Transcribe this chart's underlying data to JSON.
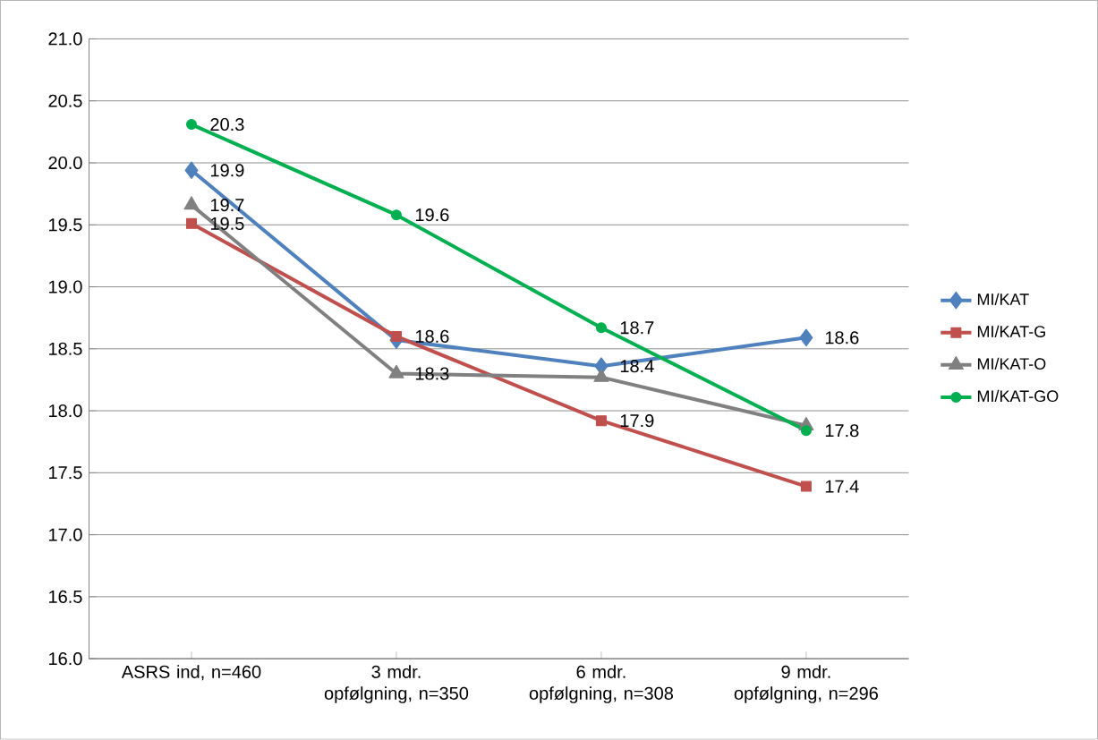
{
  "chart_data": {
    "type": "line",
    "categories": [
      "ASRS ind, n=460",
      "3 mdr. opfølgning, n=350",
      "6 mdr. opfølgning, n=308",
      "9 mdr. opfølgning, n=296"
    ],
    "series": [
      {
        "name": "MI/KAT",
        "color": "#4f81bd",
        "marker": "diamond",
        "values": [
          19.94,
          18.57,
          18.36,
          18.59
        ],
        "value_labels": [
          "19.9",
          null,
          "18.4",
          "18.6"
        ]
      },
      {
        "name": "MI/KAT-G",
        "color": "#c0504d",
        "marker": "square",
        "values": [
          19.51,
          18.6,
          17.92,
          17.39
        ],
        "value_labels": [
          "19.5",
          "18.6",
          "17.9",
          "17.4"
        ]
      },
      {
        "name": "MI/KAT-O",
        "color": "#808080",
        "marker": "triangle",
        "values": [
          19.66,
          18.3,
          18.27,
          17.88
        ],
        "value_labels": [
          "19.7",
          "18.3",
          null,
          null
        ]
      },
      {
        "name": "MI/KAT-GO",
        "color": "#00b050",
        "marker": "circle",
        "values": [
          20.31,
          19.58,
          18.67,
          17.84
        ],
        "value_labels": [
          "20.3",
          "19.6",
          "18.7",
          "17.8"
        ]
      }
    ],
    "ylim": [
      16,
      21
    ],
    "yticks": [
      {
        "value": 16,
        "label": "16.0"
      },
      {
        "value": 16.5,
        "label": "16.5"
      },
      {
        "value": 17,
        "label": "17.0"
      },
      {
        "value": 17.5,
        "label": "17.5"
      },
      {
        "value": 18,
        "label": "18.0"
      },
      {
        "value": 18.5,
        "label": "18.5"
      },
      {
        "value": 19,
        "label": "19.0"
      },
      {
        "value": 19.5,
        "label": "19.5"
      },
      {
        "value": 20,
        "label": "20.0"
      },
      {
        "value": 20.5,
        "label": "20.5"
      },
      {
        "value": 21,
        "label": "21.0"
      }
    ],
    "grid": "y",
    "legend": "right"
  }
}
